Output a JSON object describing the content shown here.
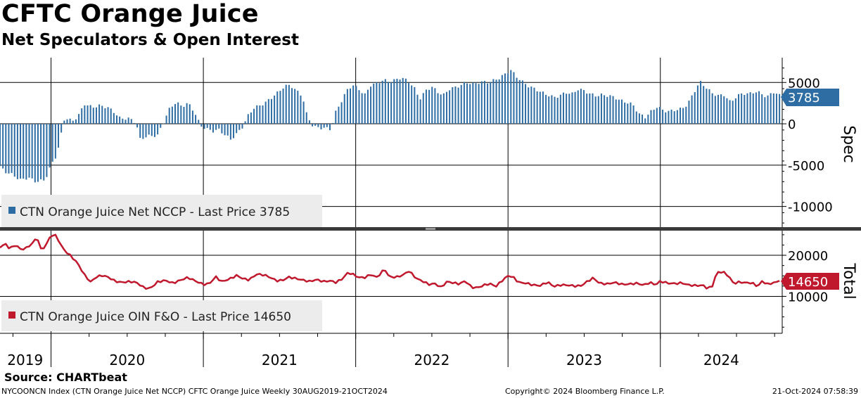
{
  "title": "CFTC Orange Juice",
  "subtitle": "Net Speculators & Open Interest",
  "source": "Source: CHARTbeat",
  "footer": {
    "left": "NYCOONCN Index (CTN Orange Juice Net NCCP) CFTC Orange Juice  Weekly 30AUG2019-21OCT2024",
    "center": "Copyright© 2024 Bloomberg Finance L.P.",
    "right": "21-Oct-2024 07:58:39"
  },
  "colors": {
    "spec": "#2E6DA4",
    "oi": "#C0192E",
    "grid": "#000000",
    "divider": "#3a3a3a"
  },
  "chart_data": [
    {
      "type": "bar",
      "panel": "top",
      "title": "CTN Orange Juice Net NCCP",
      "legend": "CTN Orange Juice Net NCCP - Last Price 3785",
      "ylabel": "Spec",
      "last_value": 3785,
      "last_label": "3785",
      "ylim": [
        -12500,
        8000
      ],
      "yticks": [
        5000,
        0,
        -5000,
        -10000
      ],
      "ytick_labels": [
        "5000",
        "0",
        "-5000",
        "-10000"
      ],
      "x_start": 2019.665,
      "x_end": 2024.8,
      "frequency": "weekly",
      "keyframes": [
        [
          2019.665,
          -5200
        ],
        [
          2019.7,
          -5800
        ],
        [
          2019.75,
          -6200
        ],
        [
          2019.8,
          -6800
        ],
        [
          2019.85,
          -6500
        ],
        [
          2019.9,
          -7000
        ],
        [
          2019.96,
          -6800
        ],
        [
          2020.0,
          -5000
        ],
        [
          2020.03,
          -4000
        ],
        [
          2020.06,
          -2200
        ],
        [
          2020.08,
          400
        ],
        [
          2020.1,
          700
        ],
        [
          2020.14,
          300
        ],
        [
          2020.18,
          1000
        ],
        [
          2020.22,
          2400
        ],
        [
          2020.27,
          2000
        ],
        [
          2020.32,
          2200
        ],
        [
          2020.37,
          2000
        ],
        [
          2020.41,
          1500
        ],
        [
          2020.45,
          700
        ],
        [
          2020.52,
          600
        ],
        [
          2020.56,
          100
        ],
        [
          2020.58,
          -1900
        ],
        [
          2020.63,
          -1500
        ],
        [
          2020.7,
          -1400
        ],
        [
          2020.74,
          300
        ],
        [
          2020.78,
          1900
        ],
        [
          2020.82,
          2600
        ],
        [
          2020.86,
          2100
        ],
        [
          2020.9,
          2500
        ],
        [
          2020.94,
          1500
        ],
        [
          2020.98,
          -200
        ],
        [
          2021.02,
          -600
        ],
        [
          2021.06,
          -900
        ],
        [
          2021.1,
          -700
        ],
        [
          2021.14,
          -1300
        ],
        [
          2021.18,
          -1900
        ],
        [
          2021.22,
          -1200
        ],
        [
          2021.26,
          -300
        ],
        [
          2021.29,
          900
        ],
        [
          2021.33,
          1900
        ],
        [
          2021.37,
          2200
        ],
        [
          2021.41,
          2600
        ],
        [
          2021.45,
          3200
        ],
        [
          2021.49,
          3800
        ],
        [
          2021.53,
          4500
        ],
        [
          2021.57,
          4700
        ],
        [
          2021.61,
          4000
        ],
        [
          2021.65,
          3400
        ],
        [
          2021.68,
          1000
        ],
        [
          2021.72,
          -300
        ],
        [
          2021.76,
          -500
        ],
        [
          2021.8,
          -500
        ],
        [
          2021.84,
          -700
        ],
        [
          2021.86,
          1100
        ],
        [
          2021.9,
          2500
        ],
        [
          2021.94,
          4000
        ],
        [
          2021.98,
          4700
        ],
        [
          2022.02,
          4200
        ],
        [
          2022.06,
          3500
        ],
        [
          2022.1,
          4700
        ],
        [
          2022.14,
          4900
        ],
        [
          2022.18,
          5300
        ],
        [
          2022.22,
          5100
        ],
        [
          2022.26,
          5300
        ],
        [
          2022.3,
          5600
        ],
        [
          2022.34,
          5200
        ],
        [
          2022.38,
          4500
        ],
        [
          2022.42,
          3000
        ],
        [
          2022.46,
          4000
        ],
        [
          2022.5,
          4500
        ],
        [
          2022.54,
          3800
        ],
        [
          2022.58,
          3500
        ],
        [
          2022.62,
          4300
        ],
        [
          2022.66,
          4400
        ],
        [
          2022.7,
          4800
        ],
        [
          2022.74,
          5000
        ],
        [
          2022.78,
          4800
        ],
        [
          2022.82,
          5100
        ],
        [
          2022.86,
          5000
        ],
        [
          2022.9,
          5200
        ],
        [
          2022.94,
          5500
        ],
        [
          2022.98,
          6000
        ],
        [
          2023.02,
          6500
        ],
        [
          2023.05,
          5800
        ],
        [
          2023.1,
          5000
        ],
        [
          2023.14,
          4500
        ],
        [
          2023.18,
          4200
        ],
        [
          2023.22,
          3800
        ],
        [
          2023.26,
          3500
        ],
        [
          2023.3,
          3200
        ],
        [
          2023.34,
          3400
        ],
        [
          2023.38,
          3800
        ],
        [
          2023.42,
          3600
        ],
        [
          2023.46,
          4200
        ],
        [
          2023.5,
          4000
        ],
        [
          2023.54,
          3600
        ],
        [
          2023.58,
          3400
        ],
        [
          2023.62,
          3500
        ],
        [
          2023.66,
          3400
        ],
        [
          2023.7,
          3200
        ],
        [
          2023.74,
          2800
        ],
        [
          2023.78,
          2600
        ],
        [
          2023.82,
          2300
        ],
        [
          2023.86,
          1200
        ],
        [
          2023.9,
          800
        ],
        [
          2023.94,
          1500
        ],
        [
          2023.98,
          2100
        ],
        [
          2024.02,
          1600
        ],
        [
          2024.06,
          1500
        ],
        [
          2024.1,
          1700
        ],
        [
          2024.14,
          1800
        ],
        [
          2024.18,
          2400
        ],
        [
          2024.22,
          3800
        ],
        [
          2024.26,
          5100
        ],
        [
          2024.3,
          4400
        ],
        [
          2024.34,
          3700
        ],
        [
          2024.38,
          3400
        ],
        [
          2024.42,
          3500
        ],
        [
          2024.46,
          2600
        ],
        [
          2024.5,
          3300
        ],
        [
          2024.54,
          3700
        ],
        [
          2024.58,
          3600
        ],
        [
          2024.62,
          3900
        ],
        [
          2024.66,
          3700
        ],
        [
          2024.7,
          3200
        ],
        [
          2024.74,
          3900
        ],
        [
          2024.78,
          3400
        ],
        [
          2024.8,
          3785
        ]
      ]
    },
    {
      "type": "line",
      "panel": "bottom",
      "title": "CTN Orange Juice OIN F&O",
      "legend": "CTN Orange Juice OIN F&O - Last Price 14650",
      "ylabel": "Total",
      "last_value": 14650,
      "last_label": "14650",
      "ylim": [
        1000,
        26000
      ],
      "yticks": [
        20000,
        10000
      ],
      "ytick_labels": [
        "20000",
        "10000"
      ],
      "x_start": 2019.665,
      "x_end": 2024.8,
      "keyframes": [
        [
          2019.665,
          22000
        ],
        [
          2019.7,
          22800
        ],
        [
          2019.73,
          21600
        ],
        [
          2019.77,
          22600
        ],
        [
          2019.8,
          21400
        ],
        [
          2019.84,
          21800
        ],
        [
          2019.88,
          23000
        ],
        [
          2019.91,
          24500
        ],
        [
          2019.93,
          21400
        ],
        [
          2019.96,
          22000
        ],
        [
          2019.99,
          24200
        ],
        [
          2020.02,
          25300
        ],
        [
          2020.05,
          23600
        ],
        [
          2020.08,
          21500
        ],
        [
          2020.13,
          19800
        ],
        [
          2020.17,
          18300
        ],
        [
          2020.22,
          15200
        ],
        [
          2020.26,
          13500
        ],
        [
          2020.3,
          14800
        ],
        [
          2020.34,
          15100
        ],
        [
          2020.38,
          14600
        ],
        [
          2020.42,
          13700
        ],
        [
          2020.46,
          13400
        ],
        [
          2020.52,
          13600
        ],
        [
          2020.56,
          13400
        ],
        [
          2020.61,
          12100
        ],
        [
          2020.65,
          11900
        ],
        [
          2020.7,
          13500
        ],
        [
          2020.75,
          13900
        ],
        [
          2020.8,
          13200
        ],
        [
          2020.86,
          14100
        ],
        [
          2020.9,
          14600
        ],
        [
          2020.95,
          13700
        ],
        [
          2021.0,
          12900
        ],
        [
          2021.04,
          13100
        ],
        [
          2021.08,
          14800
        ],
        [
          2021.12,
          13600
        ],
        [
          2021.17,
          14200
        ],
        [
          2021.22,
          15100
        ],
        [
          2021.26,
          14300
        ],
        [
          2021.3,
          14000
        ],
        [
          2021.35,
          15400
        ],
        [
          2021.4,
          15200
        ],
        [
          2021.44,
          14600
        ],
        [
          2021.48,
          13800
        ],
        [
          2021.52,
          13900
        ],
        [
          2021.56,
          14700
        ],
        [
          2021.6,
          14400
        ],
        [
          2021.65,
          14000
        ],
        [
          2021.7,
          13600
        ],
        [
          2021.74,
          14100
        ],
        [
          2021.79,
          13600
        ],
        [
          2021.83,
          13800
        ],
        [
          2021.87,
          13400
        ],
        [
          2021.91,
          14200
        ],
        [
          2021.95,
          15800
        ],
        [
          2021.98,
          15400
        ],
        [
          2022.02,
          14600
        ],
        [
          2022.06,
          14600
        ],
        [
          2022.1,
          15300
        ],
        [
          2022.14,
          14600
        ],
        [
          2022.19,
          16700
        ],
        [
          2022.22,
          14700
        ],
        [
          2022.27,
          14700
        ],
        [
          2022.31,
          15200
        ],
        [
          2022.35,
          16200
        ],
        [
          2022.4,
          14300
        ],
        [
          2022.44,
          13700
        ],
        [
          2022.48,
          12900
        ],
        [
          2022.52,
          13100
        ],
        [
          2022.56,
          12200
        ],
        [
          2022.6,
          13600
        ],
        [
          2022.64,
          13300
        ],
        [
          2022.68,
          13000
        ],
        [
          2022.72,
          13800
        ],
        [
          2022.76,
          12200
        ],
        [
          2022.8,
          12100
        ],
        [
          2022.84,
          12700
        ],
        [
          2022.88,
          13100
        ],
        [
          2022.92,
          12400
        ],
        [
          2022.96,
          13800
        ],
        [
          2023.0,
          15000
        ],
        [
          2023.03,
          14800
        ],
        [
          2023.07,
          13400
        ],
        [
          2023.12,
          13200
        ],
        [
          2023.16,
          12800
        ],
        [
          2023.21,
          12600
        ],
        [
          2023.26,
          13500
        ],
        [
          2023.3,
          12400
        ],
        [
          2023.35,
          12800
        ],
        [
          2023.4,
          12700
        ],
        [
          2023.44,
          12500
        ],
        [
          2023.48,
          12600
        ],
        [
          2023.52,
          13600
        ],
        [
          2023.56,
          14500
        ],
        [
          2023.6,
          13200
        ],
        [
          2023.65,
          13000
        ],
        [
          2023.7,
          13400
        ],
        [
          2023.75,
          12900
        ],
        [
          2023.8,
          13000
        ],
        [
          2023.85,
          13200
        ],
        [
          2023.89,
          12700
        ],
        [
          2023.93,
          13400
        ],
        [
          2023.97,
          12800
        ],
        [
          2024.0,
          13700
        ],
        [
          2024.05,
          13200
        ],
        [
          2024.1,
          13100
        ],
        [
          2024.14,
          13300
        ],
        [
          2024.18,
          12800
        ],
        [
          2024.23,
          12600
        ],
        [
          2024.28,
          12700
        ],
        [
          2024.31,
          11900
        ],
        [
          2024.34,
          12400
        ],
        [
          2024.37,
          15800
        ],
        [
          2024.41,
          16000
        ],
        [
          2024.45,
          14900
        ],
        [
          2024.48,
          13100
        ],
        [
          2024.52,
          13500
        ],
        [
          2024.56,
          13300
        ],
        [
          2024.6,
          13300
        ],
        [
          2024.64,
          12400
        ],
        [
          2024.67,
          13800
        ],
        [
          2024.7,
          12900
        ],
        [
          2024.74,
          13300
        ],
        [
          2024.77,
          13500
        ],
        [
          2024.8,
          14650
        ]
      ]
    }
  ],
  "x_axis": {
    "range": [
      2019.665,
      2024.8
    ],
    "labels": [
      {
        "text": "2019",
        "at": 2019.83
      },
      {
        "text": "2020",
        "at": 2020.5
      },
      {
        "text": "2021",
        "at": 2021.5
      },
      {
        "text": "2022",
        "at": 2022.5
      },
      {
        "text": "2023",
        "at": 2023.5
      },
      {
        "text": "2024",
        "at": 2024.4
      }
    ],
    "year_lines": [
      2020.0,
      2021.0,
      2022.0,
      2023.0,
      2024.0
    ]
  }
}
